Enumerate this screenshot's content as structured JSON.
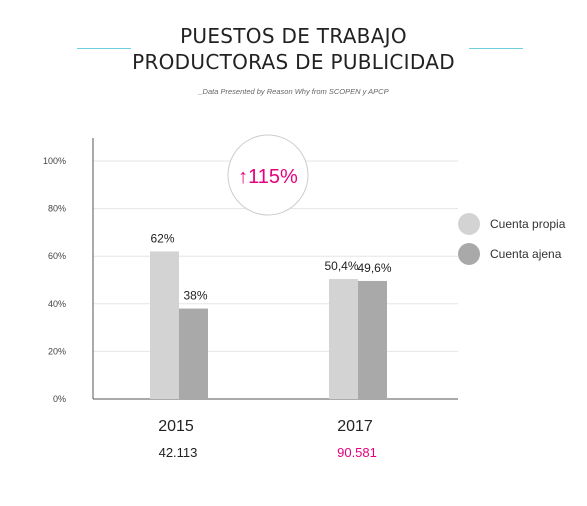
{
  "header": {
    "title_line_1": "PUESTOS DE TRABAJO",
    "title_line_2": "PRODUCTORAS DE PUBLICIDAD",
    "subtitle": "_Data Presented by Reason Why from SCOPEN y APCP",
    "accent_color": "#6fd0e2"
  },
  "colors": {
    "primary": "#d3d3d3",
    "secondary": "#a9a9a9",
    "highlight": "#e6007e",
    "axis": "#555555",
    "grid": "#e6e6e6",
    "circle_border": "#cccccc"
  },
  "chart_data": {
    "type": "bar",
    "categories": [
      "2015",
      "2017"
    ],
    "category_totals": [
      "42.113",
      "90.581"
    ],
    "highlighted_total_index": 1,
    "series": [
      {
        "name": "Cuenta propia",
        "values": [
          62,
          50.4
        ],
        "labels": [
          "62%",
          "50,4%"
        ]
      },
      {
        "name": "Cuenta ajena",
        "values": [
          38,
          49.6
        ],
        "labels": [
          "38%",
          "49,6%"
        ]
      }
    ],
    "ylim": [
      0,
      100
    ],
    "yticks": [
      {
        "value": 0,
        "label": "0%"
      },
      {
        "value": 20,
        "label": "20%"
      },
      {
        "value": 40,
        "label": "40%"
      },
      {
        "value": 60,
        "label": "60%"
      },
      {
        "value": 80,
        "label": "80%"
      },
      {
        "value": 100,
        "label": "100%"
      }
    ],
    "grid": true,
    "legend_position": "right",
    "annotation": {
      "arrow": "↑",
      "text": "115%"
    }
  }
}
